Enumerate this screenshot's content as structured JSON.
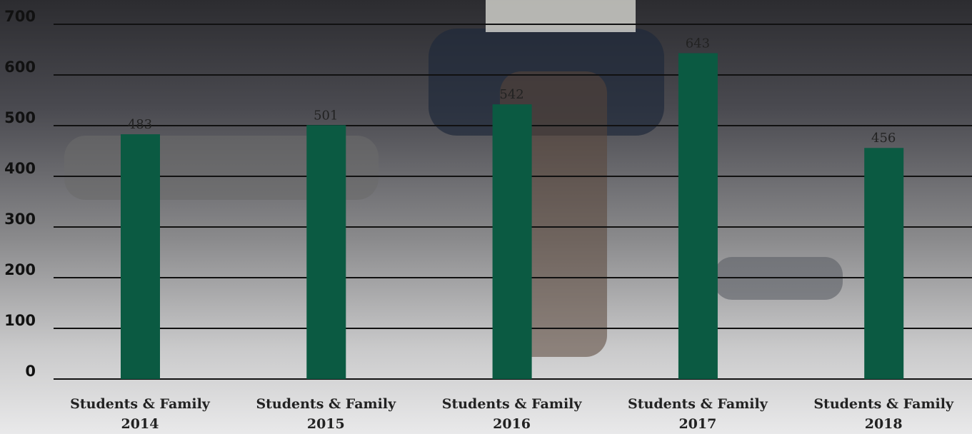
{
  "chart_data": {
    "type": "bar",
    "categories": [
      "Students & Family\n2014",
      "Students & Family\n2015",
      "Students & Family\n2016",
      "Students & Family\n2017",
      "Students & Family\n2018"
    ],
    "values": [
      483,
      501,
      542,
      643,
      456
    ],
    "color": "#0b5a42",
    "ylim": [
      0,
      700
    ],
    "yticks": [
      0,
      100,
      200,
      300,
      400,
      500,
      600,
      700
    ],
    "grid": true
  }
}
